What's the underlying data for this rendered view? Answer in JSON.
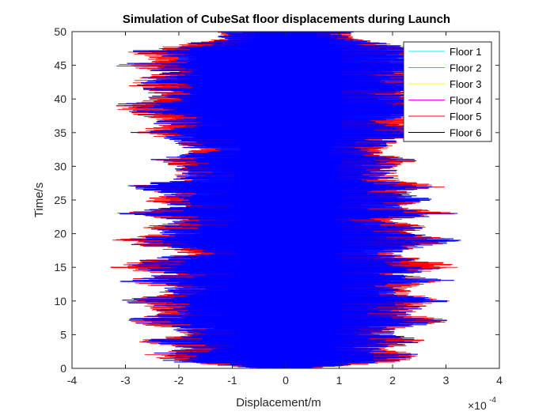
{
  "chart_data": {
    "type": "line",
    "title": "Simulation of CubeSat floor displacements during Launch",
    "xlabel": "Displacement/m",
    "ylabel": "Time/s",
    "x_exponent_label": "×10",
    "x_exponent_power": "-4",
    "xlim": [
      -4,
      4
    ],
    "ylim": [
      0,
      50
    ],
    "xticks": [
      -4,
      -3,
      -2,
      -1,
      0,
      1,
      2,
      3,
      4
    ],
    "yticks": [
      0,
      5,
      10,
      15,
      20,
      25,
      30,
      35,
      40,
      45,
      50
    ],
    "grid": false,
    "legend_position": "top-right",
    "series": [
      {
        "name": "Floor 1",
        "color": "#00ffff"
      },
      {
        "name": "Floor 2",
        "color": "#00ff00"
      },
      {
        "name": "Floor 3",
        "color": "#ffff00"
      },
      {
        "name": "Floor 4",
        "color": "#ff00ff"
      },
      {
        "name": "Floor 5",
        "color": "#ff0000"
      },
      {
        "name": "Floor 6",
        "color": "#000000"
      }
    ],
    "envelope_time_s": [
      0,
      1,
      2,
      3,
      4,
      5,
      6,
      7,
      8,
      9,
      10,
      11,
      12,
      13,
      14,
      15,
      16,
      17,
      18,
      19,
      20,
      21,
      22,
      23,
      24,
      25,
      26,
      27,
      28,
      29,
      30,
      31,
      32,
      33,
      34,
      35,
      36,
      37,
      38,
      39,
      40,
      41,
      42,
      43,
      44,
      45,
      46,
      47,
      48,
      49,
      50
    ],
    "envelope_displacement_e4": [
      0.5,
      2.2,
      2.7,
      1.9,
      2.9,
      2.0,
      2.2,
      3.3,
      2.4,
      2.6,
      3.2,
      2.4,
      2.3,
      3.2,
      2.3,
      3.4,
      2.8,
      2.0,
      2.6,
      3.4,
      2.4,
      2.7,
      2.0,
      3.3,
      2.1,
      2.8,
      2.3,
      3.1,
      2.2,
      2.1,
      2.1,
      2.6,
      1.8,
      2.0,
      2.2,
      2.9,
      2.5,
      2.5,
      3.0,
      3.4,
      2.6,
      2.6,
      3.0,
      2.8,
      2.4,
      3.3,
      2.5,
      3.0,
      2.1,
      1.3,
      1.3
    ]
  }
}
